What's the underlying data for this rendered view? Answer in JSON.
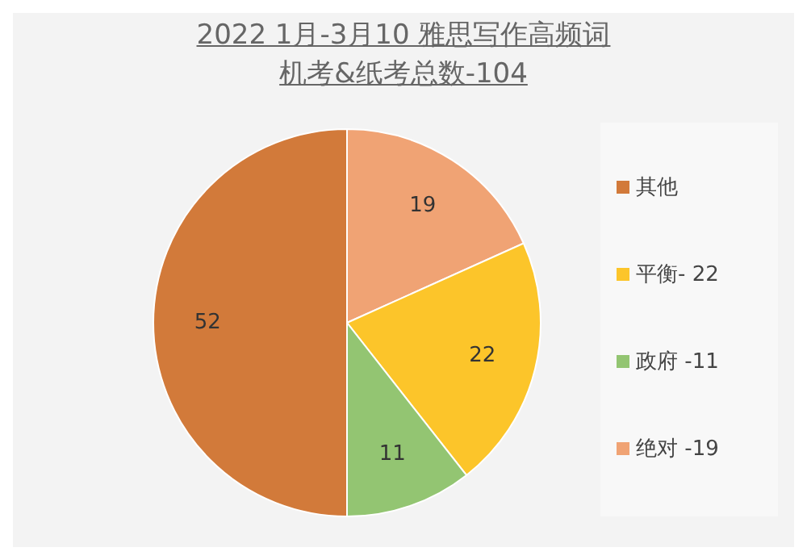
{
  "chart_data": {
    "type": "pie",
    "title": "2022 1月-3月10 雅思写作高频词",
    "subtitle": "机考&纸考总数-104",
    "categories": [
      "绝对 -19",
      "平衡- 22",
      "政府 -11",
      "其他"
    ],
    "values": [
      19,
      22,
      11,
      52
    ],
    "colors": [
      "#f0a374",
      "#fcc52a",
      "#93c572",
      "#d27a3a"
    ],
    "data_labels": true,
    "legend": "right"
  }
}
